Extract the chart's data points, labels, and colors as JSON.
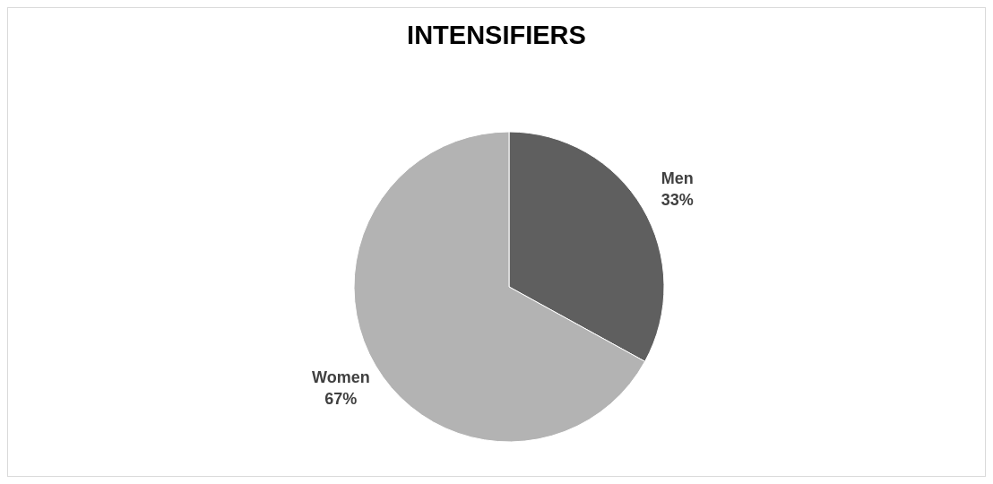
{
  "chart_data": {
    "type": "pie",
    "title": "INTENSIFIERS",
    "categories": [
      "Men",
      "Women"
    ],
    "values": [
      33,
      67
    ],
    "value_labels": [
      "33%",
      "67%"
    ],
    "colors": [
      "#5f5f5f",
      "#b3b3b3"
    ]
  }
}
